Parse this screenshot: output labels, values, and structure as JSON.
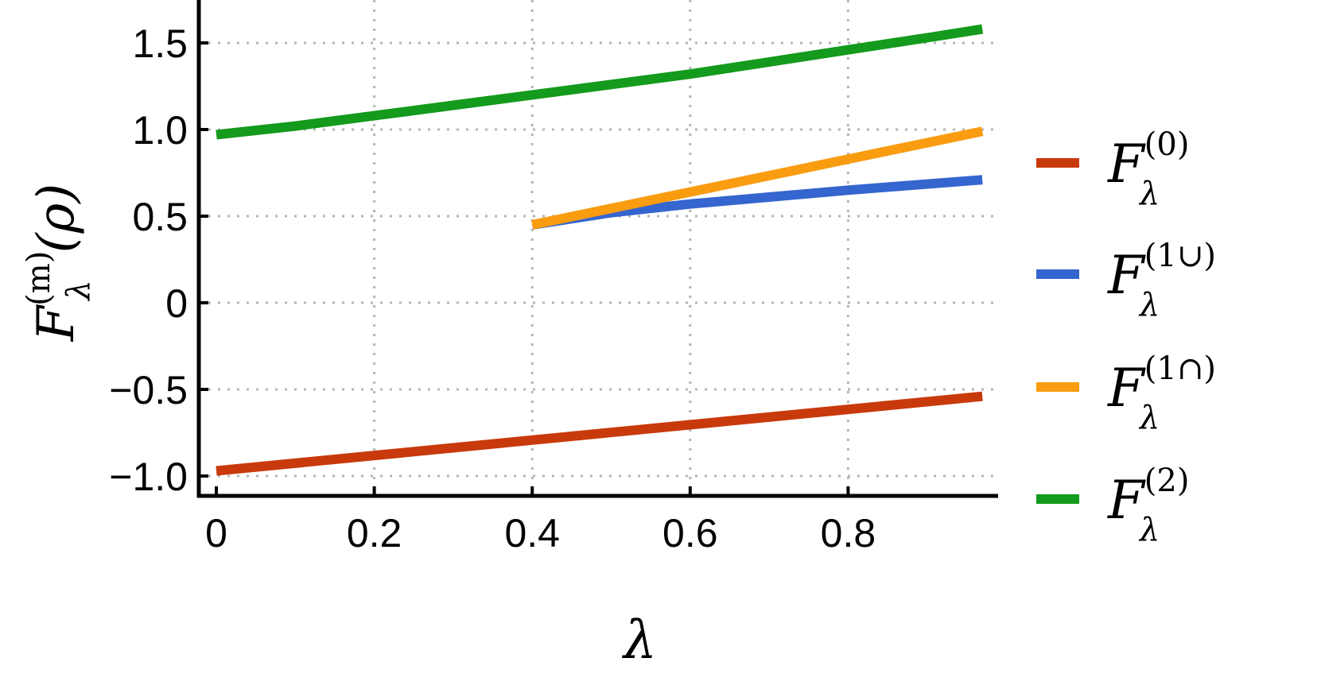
{
  "chart_data": {
    "type": "line",
    "x_axis": {
      "label": "λ",
      "range": [
        0,
        0.97
      ],
      "ticks": [
        0,
        0.2,
        0.4,
        0.6,
        0.8
      ],
      "tick_labels": [
        "0",
        "0.2",
        "0.4",
        "0.6",
        "0.8"
      ]
    },
    "y_axis": {
      "label_base": "F",
      "label_sup": "(m)",
      "label_sub": "λ",
      "label_tail": "(ρ)",
      "range": [
        -1.1,
        1.72
      ],
      "ticks": [
        -1.0,
        -0.5,
        0,
        0.5,
        1.0,
        1.5
      ],
      "tick_labels": [
        "−1.0",
        "−0.5",
        "0",
        "0.5",
        "1.0",
        "1.5"
      ]
    },
    "grid": true,
    "legend_position": "right",
    "series": [
      {
        "legend_base": "F",
        "legend_sub": "λ",
        "legend_sup": "(0)",
        "color": "#c83a0c",
        "points": [
          [
            0,
            -0.97
          ],
          [
            0.97,
            -0.54
          ]
        ]
      },
      {
        "legend_base": "F",
        "legend_sub": "λ",
        "legend_sup": "(1∪)",
        "color": "#3565cf",
        "points": [
          [
            0.4,
            0.45
          ],
          [
            0.5,
            0.52
          ],
          [
            0.6,
            0.57
          ],
          [
            0.7,
            0.61
          ],
          [
            0.8,
            0.65
          ],
          [
            0.97,
            0.71
          ]
        ]
      },
      {
        "legend_base": "F",
        "legend_sub": "λ",
        "legend_sup": "(1∩)",
        "color": "#f99c10",
        "points": [
          [
            0.4,
            0.45
          ],
          [
            0.97,
            0.99
          ]
        ]
      },
      {
        "legend_base": "F",
        "legend_sub": "λ",
        "legend_sup": "(2)",
        "color": "#149a1c",
        "points": [
          [
            0,
            0.97
          ],
          [
            0.1,
            1.02
          ],
          [
            0.2,
            1.08
          ],
          [
            0.3,
            1.14
          ],
          [
            0.4,
            1.2
          ],
          [
            0.5,
            1.26
          ],
          [
            0.6,
            1.32
          ],
          [
            0.7,
            1.39
          ],
          [
            0.8,
            1.46
          ],
          [
            0.9,
            1.53
          ],
          [
            0.97,
            1.58
          ]
        ]
      }
    ]
  }
}
